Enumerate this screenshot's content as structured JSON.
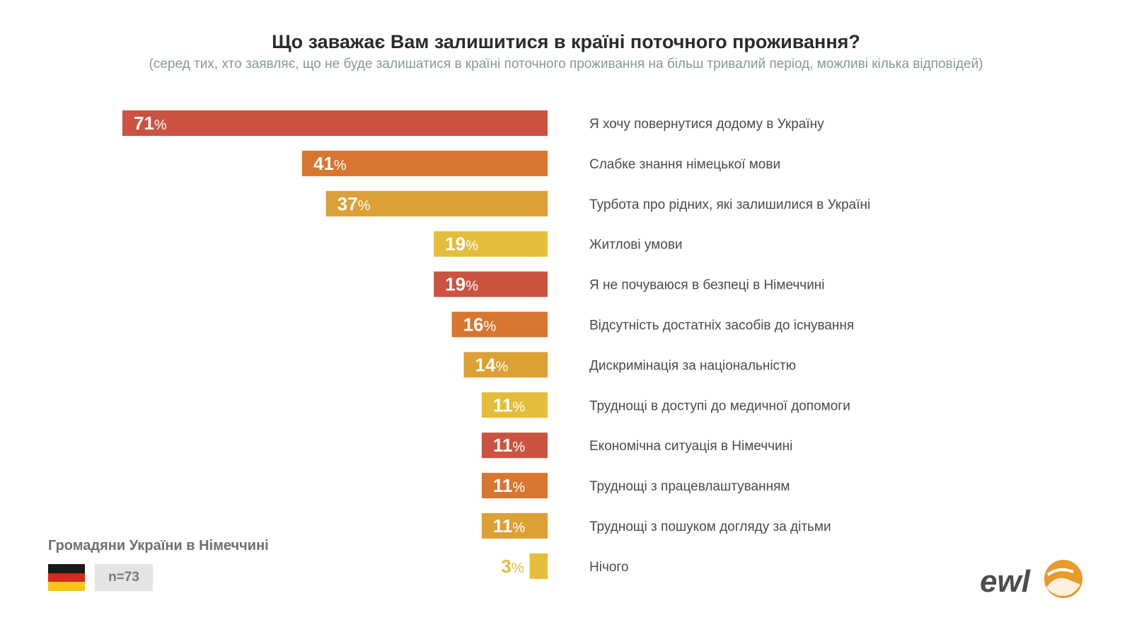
{
  "header": {
    "title": "Що заважає Вам залишитися в країні поточного проживання?",
    "subtitle": "(серед тих, хто заявляє, що не буде залишатися в країні поточного проживання на більш тривалий період, можливі кілька відповідей)"
  },
  "chart_data": {
    "type": "bar",
    "orientation": "horizontal",
    "categories": [
      "Я хочу повернутися додому в Україну",
      "Слабке знання німецької мови",
      "Турбота про рідних, які залишилися в Україні",
      "Житлові умови",
      "Я не почуваюся в безпеці в Німеччині",
      "Відсутність достатніх засобів до існування",
      "Дискримінація за національністю",
      "Труднощі в доступі до медичної допомоги",
      "Економічна ситуація в Німеччині",
      "Труднощі з працевлаштуванням",
      "Труднощі з пошуком догляду за дітьми",
      "Нічого"
    ],
    "values": [
      71,
      41,
      37,
      19,
      19,
      16,
      14,
      11,
      11,
      11,
      11,
      3
    ],
    "value_suffix": "%",
    "colors": [
      "#cc5241",
      "#d8752f",
      "#dca034",
      "#e4bd3a",
      "#cc5241",
      "#d8752f",
      "#dca034",
      "#e4bd3a",
      "#cc5241",
      "#d8752f",
      "#dca034",
      "#e4bd3a"
    ],
    "xlim": [
      0,
      71
    ]
  },
  "footer": {
    "group_label": "Громадяни України в Німеччині",
    "sample": "n=73",
    "flag_colors": [
      "#1a1a1a",
      "#d52b1e",
      "#f5c518"
    ],
    "logo_text": "ewl",
    "logo_icon": "handshake-circle-icon"
  }
}
